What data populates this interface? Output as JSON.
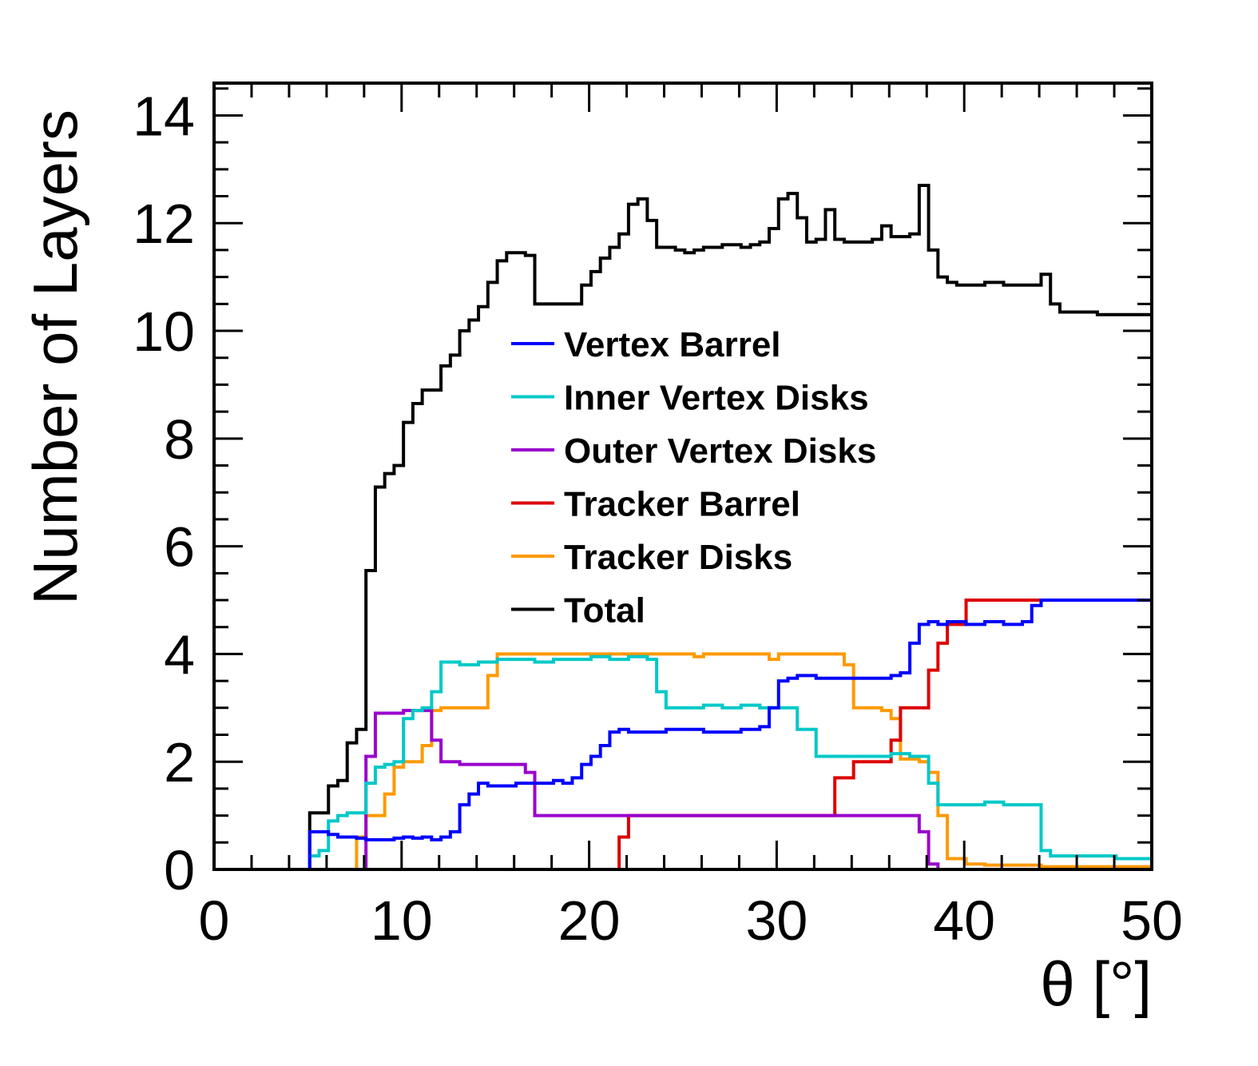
{
  "chart_data": {
    "type": "line",
    "style": "step-histogram",
    "title": "",
    "xlabel": "θ [°]",
    "ylabel": "Number of Layers",
    "xlim": [
      0,
      50
    ],
    "ylim": [
      0,
      14.6
    ],
    "xticks": [
      0,
      10,
      20,
      30,
      40,
      50
    ],
    "yticks": [
      0,
      2,
      4,
      6,
      8,
      10,
      12,
      14
    ],
    "grid": false,
    "legend_position": "center",
    "series": [
      {
        "name": "Vertex Barrel",
        "color": "#0000ff",
        "x": [
          0,
          5.1,
          5.6,
          6.1,
          6.6,
          7.1,
          7.6,
          8.1,
          8.6,
          9.1,
          9.6,
          10.1,
          10.6,
          11.1,
          11.6,
          12.1,
          12.6,
          13.1,
          13.6,
          14.1,
          14.6,
          15.1,
          16.1,
          17.1,
          18.1,
          18.6,
          19.1,
          19.6,
          20.1,
          20.6,
          21.1,
          21.6,
          22.1,
          23.1,
          24.1,
          25.1,
          26.1,
          27.1,
          28.1,
          29.1,
          29.6,
          30.1,
          30.6,
          31.1,
          32.1,
          33.1,
          34.1,
          35.1,
          36.1,
          36.6,
          37.1,
          37.6,
          38.1,
          38.6,
          39.1,
          40.1,
          41.1,
          42.1,
          43.1,
          43.6,
          44.1
        ],
        "y": [
          0,
          0.7,
          0.7,
          0.65,
          0.6,
          0.6,
          0.58,
          0.55,
          0.55,
          0.55,
          0.58,
          0.6,
          0.58,
          0.6,
          0.55,
          0.6,
          0.7,
          1.2,
          1.4,
          1.6,
          1.55,
          1.55,
          1.6,
          1.6,
          1.65,
          1.6,
          1.7,
          1.95,
          2.1,
          2.3,
          2.55,
          2.6,
          2.55,
          2.55,
          2.6,
          2.6,
          2.55,
          2.55,
          2.6,
          2.65,
          3.0,
          3.5,
          3.55,
          3.6,
          3.55,
          3.55,
          3.55,
          3.55,
          3.6,
          3.65,
          4.2,
          4.55,
          4.6,
          4.55,
          4.6,
          4.55,
          4.6,
          4.55,
          4.6,
          4.9,
          5.0
        ]
      },
      {
        "name": "Inner Vertex Disks",
        "color": "#00c8c8",
        "x": [
          0,
          5.1,
          5.6,
          6.1,
          6.6,
          7.1,
          7.6,
          8.1,
          8.6,
          9.1,
          9.6,
          10.1,
          10.6,
          11.1,
          11.6,
          12.1,
          13.1,
          14.1,
          15.1,
          16.1,
          17.1,
          18.1,
          19.1,
          20.1,
          21.1,
          22.1,
          23.1,
          23.6,
          24.1,
          25.1,
          26.1,
          27.1,
          28.1,
          29.1,
          30.1,
          31.1,
          32.1,
          33.1,
          34.1,
          35.1,
          36.1,
          37.1,
          38.1,
          38.6,
          39.1,
          40.1,
          41.1,
          42.1,
          43.1,
          44.1,
          44.6,
          45.1,
          46.1,
          47.1,
          48.1,
          49.1
        ],
        "y": [
          0,
          0.25,
          0.35,
          0.9,
          1.0,
          1.05,
          1.05,
          1.6,
          1.9,
          1.95,
          2.0,
          2.8,
          2.95,
          3.0,
          3.3,
          3.85,
          3.8,
          3.85,
          3.9,
          3.9,
          3.85,
          3.9,
          3.9,
          3.95,
          3.9,
          3.95,
          3.9,
          3.3,
          3.0,
          3.0,
          3.05,
          3.0,
          3.05,
          3.0,
          3.0,
          2.6,
          2.1,
          2.1,
          2.1,
          2.1,
          2.15,
          2.1,
          1.6,
          1.2,
          1.2,
          1.2,
          1.25,
          1.2,
          1.2,
          0.35,
          0.25,
          0.25,
          0.25,
          0.25,
          0.2,
          0.2
        ]
      },
      {
        "name": "Outer Vertex Disks",
        "color": "#9900cc",
        "x": [
          0,
          7.6,
          8.1,
          8.6,
          9.1,
          9.6,
          10.1,
          10.6,
          11.1,
          11.6,
          12.1,
          13.1,
          14.1,
          15.1,
          16.1,
          16.6,
          17.1,
          18.1,
          19.1,
          20.1,
          21.1,
          22.1,
          23.1,
          24.1,
          25.1,
          26.1,
          27.1,
          28.1,
          29.1,
          30.1,
          31.1,
          32.1,
          33.1,
          34.1,
          35.1,
          36.1,
          37.1,
          37.6,
          38.1,
          38.6
        ],
        "y": [
          0,
          0,
          2.1,
          2.9,
          2.9,
          2.9,
          2.95,
          2.95,
          2.95,
          2.4,
          2.0,
          1.95,
          1.95,
          1.95,
          1.95,
          1.8,
          1.0,
          1.0,
          1.0,
          1.0,
          1.0,
          1.0,
          1.0,
          1.0,
          1.0,
          1.0,
          1.0,
          1.0,
          1.0,
          1.0,
          1.0,
          1.0,
          1.0,
          1.0,
          1.0,
          1.0,
          1.0,
          0.7,
          0.1,
          0.0
        ]
      },
      {
        "name": "Tracker Barrel",
        "color": "#dd0000",
        "x": [
          0,
          21.6,
          22.1,
          23.1,
          24.1,
          25.1,
          26.1,
          27.1,
          28.1,
          29.1,
          30.1,
          31.1,
          32.1,
          32.6,
          33.1,
          34.1,
          35.1,
          35.6,
          36.1,
          36.6,
          37.1,
          37.6,
          38.1,
          38.6,
          39.1,
          40.1,
          41.1,
          42.1,
          43.1,
          44.1,
          45.1,
          46.1,
          47.1,
          48.1,
          49.1
        ],
        "y": [
          0,
          0.6,
          1.0,
          1.0,
          1.0,
          1.0,
          1.0,
          1.0,
          1.0,
          1.0,
          1.0,
          1.0,
          1.0,
          1.0,
          1.7,
          2.0,
          2.0,
          2.0,
          2.4,
          3.0,
          3.0,
          3.0,
          3.7,
          4.2,
          4.55,
          5.0,
          5.0,
          5.0,
          5.0,
          5.0,
          5.0,
          5.0,
          5.0,
          5.0,
          5.0
        ]
      },
      {
        "name": "Tracker Disks",
        "color": "#ff9900",
        "x": [
          0,
          7.1,
          7.6,
          8.1,
          8.6,
          9.1,
          9.6,
          10.1,
          10.6,
          11.1,
          11.6,
          12.1,
          13.1,
          14.1,
          14.6,
          15.1,
          16.1,
          17.1,
          18.1,
          19.1,
          20.1,
          21.1,
          22.1,
          23.1,
          24.1,
          25.1,
          25.6,
          26.1,
          27.1,
          28.1,
          29.1,
          29.6,
          30.1,
          31.1,
          32.1,
          33.1,
          33.6,
          34.1,
          35.1,
          35.6,
          36.1,
          36.6,
          37.1,
          37.6,
          38.1,
          38.6,
          39.1,
          40.1,
          41.1,
          42.1,
          43.1,
          44.1,
          45.1,
          46.1,
          47.1,
          48.1,
          49.1
        ],
        "y": [
          0,
          0.0,
          0.6,
          1.0,
          1.0,
          1.4,
          1.9,
          2.0,
          2.0,
          2.3,
          2.95,
          3.0,
          3.0,
          3.0,
          3.6,
          4.0,
          4.0,
          4.0,
          4.0,
          4.0,
          4.0,
          4.0,
          4.0,
          4.0,
          4.0,
          4.0,
          3.95,
          4.0,
          4.0,
          4.0,
          4.0,
          3.9,
          4.0,
          4.0,
          4.0,
          4.0,
          3.8,
          3.0,
          3.0,
          2.95,
          2.8,
          2.05,
          2.05,
          2.0,
          1.8,
          1.0,
          0.2,
          0.1,
          0.08,
          0.08,
          0.08,
          0.05,
          0.05,
          0.05,
          0.05,
          0.05,
          0.05
        ]
      },
      {
        "name": "Total",
        "color": "#000000",
        "x": [
          0,
          5.1,
          6.1,
          6.6,
          7.1,
          7.6,
          8.1,
          8.6,
          9.1,
          9.6,
          10.1,
          10.6,
          11.1,
          11.6,
          12.1,
          12.6,
          13.1,
          13.6,
          14.1,
          14.6,
          15.1,
          15.6,
          16.1,
          16.6,
          17.1,
          18.1,
          19.1,
          19.6,
          20.1,
          20.6,
          21.1,
          21.6,
          22.1,
          22.6,
          23.1,
          23.6,
          24.1,
          24.6,
          25.1,
          25.6,
          26.1,
          27.1,
          28.1,
          28.6,
          29.1,
          29.6,
          30.1,
          30.6,
          31.1,
          31.6,
          32.1,
          32.6,
          33.1,
          33.6,
          34.1,
          35.1,
          35.6,
          36.1,
          37.1,
          37.6,
          38.1,
          38.6,
          39.1,
          39.6,
          40.1,
          41.1,
          42.1,
          43.1,
          44.1,
          44.6,
          45.1,
          46.1,
          47.1,
          48.1,
          49.1
        ],
        "y": [
          0,
          1.05,
          1.55,
          1.65,
          2.35,
          2.6,
          5.55,
          7.1,
          7.35,
          7.5,
          8.3,
          8.65,
          8.9,
          8.9,
          9.35,
          9.55,
          10.0,
          10.2,
          10.45,
          10.9,
          11.3,
          11.45,
          11.45,
          11.4,
          10.5,
          10.5,
          10.5,
          10.85,
          11.1,
          11.35,
          11.55,
          11.8,
          12.35,
          12.45,
          12.05,
          11.55,
          11.55,
          11.5,
          11.45,
          11.5,
          11.55,
          11.6,
          11.55,
          11.6,
          11.65,
          11.9,
          12.45,
          12.55,
          12.1,
          11.65,
          11.7,
          12.25,
          11.7,
          11.65,
          11.65,
          11.7,
          11.95,
          11.75,
          11.8,
          12.7,
          11.5,
          11.0,
          10.9,
          10.85,
          10.85,
          10.9,
          10.85,
          10.85,
          11.05,
          10.5,
          10.35,
          10.35,
          10.3,
          10.3,
          10.3
        ]
      }
    ]
  }
}
